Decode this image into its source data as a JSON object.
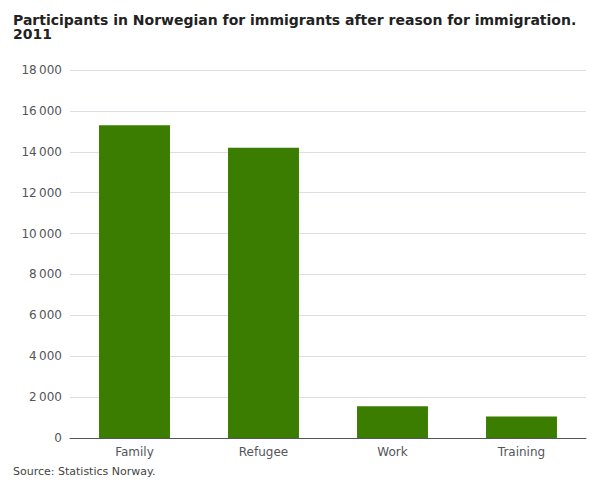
{
  "chart_data": {
    "type": "bar",
    "title": "Participants in Norwegian for immigrants after reason for immigration. 2011",
    "source": "Source: Statistics Norway.",
    "categories": [
      "Family",
      "Refugee",
      "Work",
      "Training"
    ],
    "values": [
      15300,
      14200,
      1550,
      1050
    ],
    "color": "#3a7d00",
    "ylim": [
      0,
      18000
    ],
    "yticks": [
      0,
      {
        "value": 2000,
        "label": "2 000"
      },
      {
        "value": 4000,
        "label": "4 000"
      },
      {
        "value": 6000,
        "label": "6 000"
      },
      {
        "value": 8000,
        "label": "8 000"
      },
      {
        "value": 10000,
        "label": "10 000"
      },
      {
        "value": 12000,
        "label": "12 000"
      },
      {
        "value": 14000,
        "label": "14 000"
      },
      {
        "value": 16000,
        "label": "16 000"
      },
      {
        "value": 18000,
        "label": "18 000"
      }
    ],
    "grid": true
  }
}
